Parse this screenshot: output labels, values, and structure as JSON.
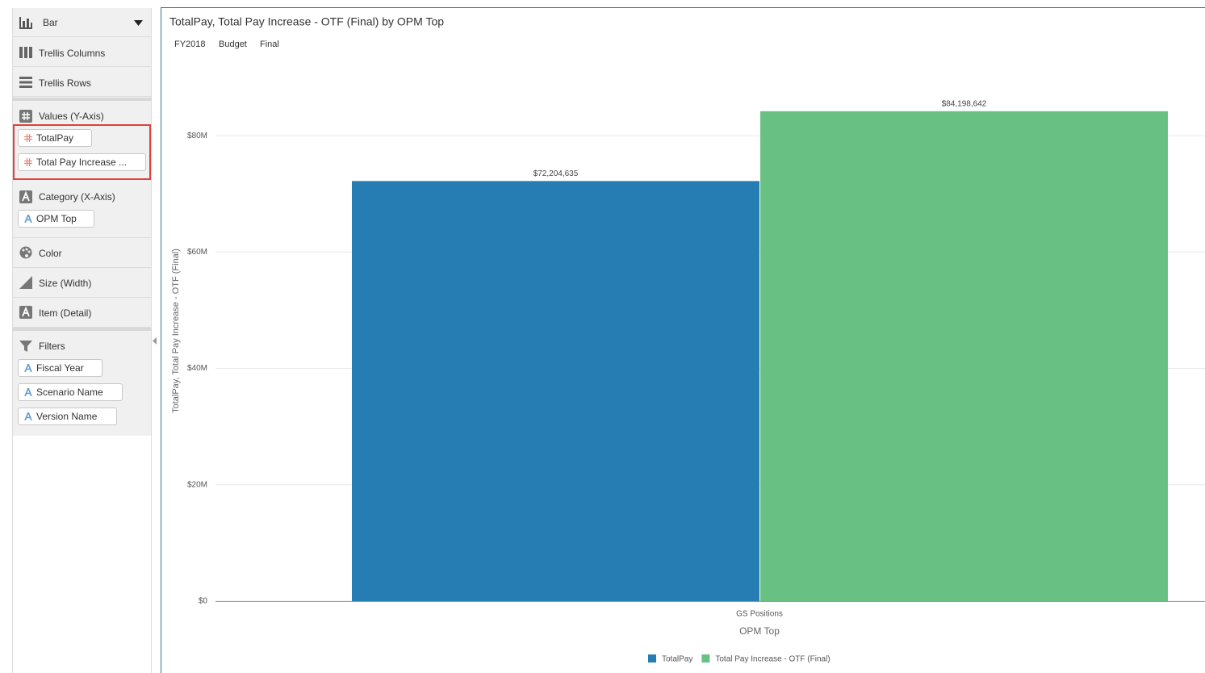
{
  "sidebar": {
    "chart_type": "Bar",
    "trellis_columns": "Trellis Columns",
    "trellis_rows": "Trellis Rows",
    "values_header": "Values (Y-Axis)",
    "values": [
      "TotalPay",
      "Total Pay Increase ..."
    ],
    "category_header": "Category (X-Axis)",
    "category": "OPM Top",
    "color": "Color",
    "size": "Size (Width)",
    "item": "Item (Detail)",
    "filters_header": "Filters",
    "filters": [
      "Fiscal Year",
      "Scenario Name",
      "Version Name"
    ]
  },
  "chart_data": {
    "type": "bar",
    "title": "TotalPay, Total Pay Increase - OTF (Final) by OPM Top",
    "filters": [
      "FY2018",
      "Budget",
      "Final"
    ],
    "y_label": "TotalPay, Total Pay Increase - OTF (Final)",
    "x_label": "OPM Top",
    "categories": [
      "GS Positions"
    ],
    "series": [
      {
        "name": "TotalPay",
        "color": "#267db3",
        "values": [
          72204635
        ],
        "value_labels": [
          "$72,204,635"
        ]
      },
      {
        "name": "Total Pay Increase - OTF (Final)",
        "color": "#68c182",
        "values": [
          84198642
        ],
        "value_labels": [
          "$84,198,642"
        ]
      }
    ],
    "ylim": [
      0,
      90000000
    ],
    "yticks": [
      {
        "value": 0,
        "label": "$0"
      },
      {
        "value": 20000000,
        "label": "$20M"
      },
      {
        "value": 40000000,
        "label": "$40M"
      },
      {
        "value": 60000000,
        "label": "$60M"
      },
      {
        "value": 80000000,
        "label": "$80M"
      }
    ],
    "grid": true
  }
}
